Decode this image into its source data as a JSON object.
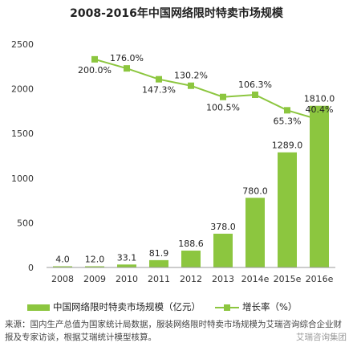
{
  "colors": {
    "bar": "#8cc63f",
    "line": "#8cc63f",
    "axis": "#999999",
    "text": "#222222"
  },
  "chart_data": {
    "type": "bar",
    "title": "2008-2016年中国网络限时特卖市场规模",
    "categories": [
      "2008",
      "2009",
      "2010",
      "2011",
      "2012",
      "2013",
      "2014e",
      "2015e",
      "2016e"
    ],
    "ylim": [
      0,
      2500
    ],
    "yticks": [
      "0",
      "500",
      "1000",
      "1500",
      "2000",
      "2500"
    ],
    "grid": false,
    "legend_position": "bottom",
    "series": [
      {
        "name": "中国网络限时特卖市场规模（亿元）",
        "type": "bar",
        "values": [
          4.0,
          12.0,
          33.1,
          81.9,
          188.6,
          378.0,
          780.0,
          1289.0,
          1810.0
        ],
        "labels": [
          "4.0",
          "12.0",
          "33.1",
          "81.9",
          "188.6",
          "378.0",
          "780.0",
          "1289.0",
          "1810.0"
        ]
      },
      {
        "name": "增长率（%）",
        "type": "line",
        "values": [
          null,
          200.0,
          176.0,
          147.3,
          130.2,
          100.5,
          106.3,
          65.3,
          40.4
        ],
        "labels": [
          "",
          "200.0%",
          "176.0%",
          "147.3%",
          "130.2%",
          "100.5%",
          "106.3%",
          "65.3%",
          "40.4%"
        ],
        "secondary_ylim": [
          -350,
          240
        ]
      }
    ]
  },
  "legend": {
    "bar_label": "中国网络限时特卖市场规模（亿元）",
    "line_label": "增长率（%）"
  },
  "source_note": "来源：国内生产总值为国家统计局数据，服装网络限时特卖市场规模为艾瑞咨询综合企业财报及专家访谈，根据艾瑞统计模型核算。",
  "watermark": "艾瑞咨询集团"
}
